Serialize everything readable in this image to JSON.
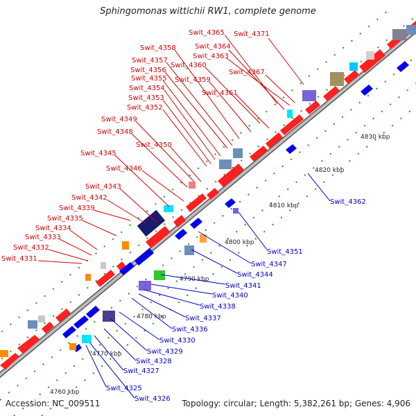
{
  "title": "Sphingomonas wittichii RW1, complete genome",
  "footer": {
    "accession": "Accession: NC_009511",
    "summary": "Topology: circular; Length: 5,382,261 bp; Genes: 4,906"
  },
  "colors": {
    "forward_label": "#d40000",
    "reverse_label": "#0000cc",
    "forward_gene": "#ff0000",
    "reverse_gene": "#0000ee",
    "backbone": "#9a9a9a",
    "dots": "#2a8a2a"
  },
  "kbp_ticks": [
    "4760 kbp",
    "4770 kbp",
    "4780 kbp",
    "4790 kbp",
    "4800 kbp",
    "4810 kbp",
    "4820 kbp",
    "4830 kbp"
  ],
  "forward_labels": [
    "Swit_4365",
    "Swit_4371",
    "Swit_4358",
    "Swit_4364",
    "Swit_4363",
    "Swit_4357",
    "Swit_4360",
    "Swit_4356",
    "Swit_4367",
    "Swit_4355",
    "Swit_4359",
    "Swit_4354",
    "Swit_4361",
    "Swit_4353",
    "Swit_4352",
    "Swit_4349",
    "Swit_4348",
    "Swit_4350",
    "Swit_4345",
    "Swit_4346",
    "Swit_4343",
    "Swit_4342",
    "Swit_4339",
    "Swit_4335",
    "Swit_4334",
    "Swit_4333",
    "Swit_4332",
    "Swit_4331"
  ],
  "reverse_labels": [
    "Swit_4362",
    "Swit_4351",
    "Swit_4347",
    "Swit_4344",
    "Swit_4341",
    "Swit_4340",
    "Swit_4338",
    "Swit_4337",
    "Swit_4336",
    "Swit_4330",
    "Swit_4329",
    "Swit_4328",
    "Swit_4327",
    "Swit_4325",
    "Swit_4326"
  ]
}
